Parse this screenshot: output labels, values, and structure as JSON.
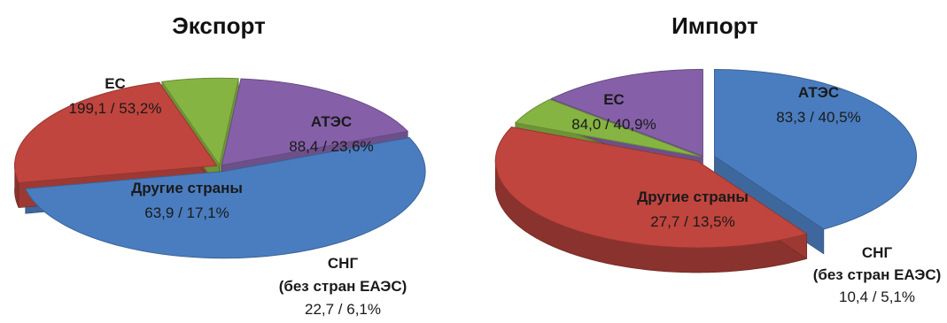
{
  "chart_data": [
    {
      "type": "pie",
      "title": "Экспорт",
      "slices": [
        {
          "label": "ЕС",
          "value": "199,1 / 53,2%",
          "share": 53.2,
          "color": "#4a7dbf"
        },
        {
          "label": "АТЭС",
          "value": "88,4 / 23,6%",
          "share": 23.6,
          "color": "#c0453e"
        },
        {
          "label": "СНГ",
          "sublabel": "(без стран ЕАЭС)",
          "value": "22,7 / 6,1%",
          "share": 6.1,
          "color": "#86b443"
        },
        {
          "label": "Другие страны",
          "value": "63,9 / 17,1%",
          "share": 17.1,
          "color": "#8560a8"
        }
      ]
    },
    {
      "type": "pie",
      "title": "Импорт",
      "slices": [
        {
          "label": "ЕС",
          "value": "84,0 / 40,9%",
          "share": 40.9,
          "color": "#4a7dbf"
        },
        {
          "label": "АТЭС",
          "value": "83,3 / 40,5%",
          "share": 40.5,
          "color": "#c0453e"
        },
        {
          "label": "СНГ",
          "sublabel": "(без стран ЕАЭС)",
          "value": "10,4 / 5,1%",
          "share": 5.1,
          "color": "#86b443"
        },
        {
          "label": "Другие страны",
          "value": "27,7 / 13,5%",
          "share": 13.5,
          "color": "#8560a8"
        }
      ]
    }
  ]
}
